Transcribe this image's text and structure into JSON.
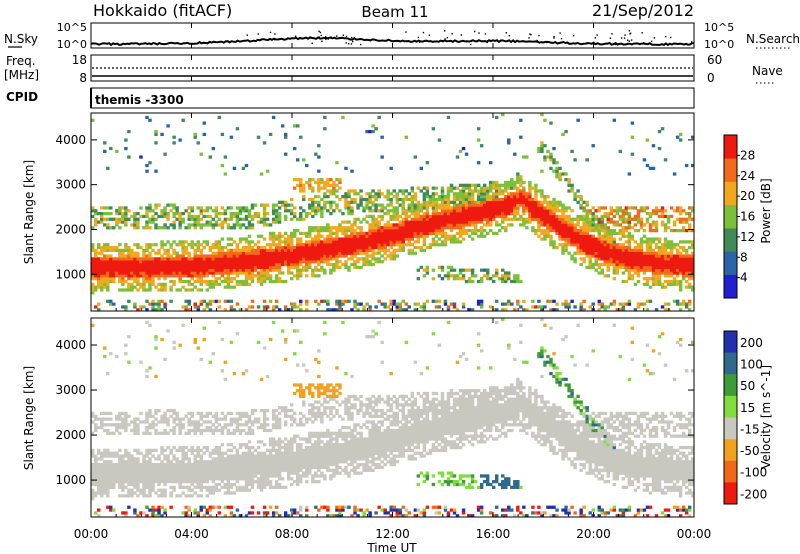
{
  "header": {
    "title": "Hokkaido (fitACF)",
    "beam": "Beam 11",
    "date": "21/Sep/2012"
  },
  "noise_panel": {
    "left_label": "N.Sky",
    "right_label": "N.Search",
    "ticks": [
      "10^5",
      "10^0"
    ]
  },
  "freq_panel": {
    "left_label_line1": "Freq.",
    "left_label_line2": "[MHz]",
    "left_ticks": [
      "18",
      "8"
    ],
    "right_label": "Nave",
    "right_ticks": [
      "60",
      "0"
    ]
  },
  "cpid_panel": {
    "label": "CPID",
    "value": "themis -3300"
  },
  "chart_data": [
    {
      "type": "heatmap",
      "name": "power",
      "ylabel": "Slant Range [km]",
      "ylim": [
        180,
        4600
      ],
      "yticks": [
        "1000",
        "2000",
        "3000",
        "4000"
      ],
      "xlim": [
        0,
        24
      ],
      "colorbar_label": "Power [dB]",
      "colorbar_ticks": [
        "4",
        "8",
        "12",
        "16",
        "20",
        "24",
        "28"
      ],
      "colorbar_range": [
        0,
        32
      ],
      "colors": [
        "#2020d0",
        "#2a64a8",
        "#3e8a58",
        "#7ac038",
        "#f2a81e",
        "#f26a1a",
        "#ee1a10"
      ]
    },
    {
      "type": "heatmap",
      "name": "velocity",
      "ylabel": "Slant Range [km]",
      "ylim": [
        180,
        4600
      ],
      "yticks": [
        "1000",
        "2000",
        "3000",
        "4000"
      ],
      "xlim": [
        0,
        24
      ],
      "colorbar_label": "Velocity [m s^-1]",
      "colorbar_ticks": [
        "200",
        "100",
        "50",
        "15",
        "-15",
        "-50",
        "-100",
        "-200"
      ],
      "colors": [
        "#2030b0",
        "#2f6a8c",
        "#3f9a3a",
        "#82dc3c",
        "#c8c8c0",
        "#f2a020",
        "#f26818",
        "#ee1a10"
      ]
    }
  ],
  "x_axis": {
    "label": "Time UT",
    "ticks": [
      "00:00",
      "04:00",
      "08:00",
      "12:00",
      "16:00",
      "20:00",
      "00:00"
    ]
  }
}
